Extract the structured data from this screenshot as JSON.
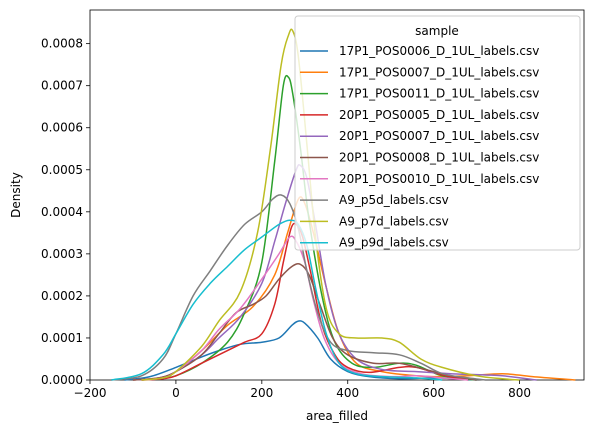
{
  "chart_data": {
    "type": "line",
    "xlabel": "area_filled",
    "ylabel": "Density",
    "xlim": [
      -200,
      950
    ],
    "ylim": [
      0,
      0.00088
    ],
    "xticks": [
      -200,
      0,
      200,
      400,
      600,
      800
    ],
    "xtick_labels": [
      "−200",
      "0",
      "200",
      "400",
      "600",
      "800"
    ],
    "yticks": [
      0,
      0.0001,
      0.0002,
      0.0003,
      0.0004,
      0.0005,
      0.0006,
      0.0007,
      0.0008
    ],
    "ytick_labels": [
      "0.0000",
      "0.0001",
      "0.0002",
      "0.0003",
      "0.0004",
      "0.0005",
      "0.0006",
      "0.0007",
      "0.0008"
    ],
    "grid": false,
    "legend": {
      "title": "sample",
      "placement": "top-right"
    },
    "series": [
      {
        "name": "17P1_POS0006_D_1UL_labels.csv",
        "color": "#1f77b4",
        "points": [
          [
            -120,
            0
          ],
          [
            -60,
            8e-06
          ],
          [
            0,
            3e-05
          ],
          [
            60,
            5.5e-05
          ],
          [
            100,
            7e-05
          ],
          [
            150,
            8.5e-05
          ],
          [
            200,
            9e-05
          ],
          [
            240,
            0.0001
          ],
          [
            270,
            0.00013
          ],
          [
            285,
            0.00014
          ],
          [
            300,
            0.000135
          ],
          [
            330,
            0.0001
          ],
          [
            360,
            5e-05
          ],
          [
            400,
            2e-05
          ],
          [
            450,
            8e-06
          ],
          [
            520,
            3e-06
          ],
          [
            600,
            5e-06
          ],
          [
            650,
            3e-06
          ],
          [
            700,
            0
          ]
        ]
      },
      {
        "name": "17P1_POS0007_D_1UL_labels.csv",
        "color": "#ff7f0e",
        "points": [
          [
            -100,
            0
          ],
          [
            -40,
            5e-06
          ],
          [
            0,
            2e-05
          ],
          [
            60,
            7e-05
          ],
          [
            120,
            0.00013
          ],
          [
            180,
            0.000175
          ],
          [
            230,
            0.00025
          ],
          [
            260,
            0.00035
          ],
          [
            285,
            0.00043
          ],
          [
            300,
            0.00042
          ],
          [
            320,
            0.00035
          ],
          [
            350,
            0.00022
          ],
          [
            380,
            0.00011
          ],
          [
            420,
            4e-05
          ],
          [
            480,
            2e-05
          ],
          [
            540,
            1.2e-05
          ],
          [
            600,
            8e-06
          ],
          [
            680,
            1e-05
          ],
          [
            760,
            1.5e-05
          ],
          [
            830,
            8e-06
          ],
          [
            930,
            0
          ]
        ]
      },
      {
        "name": "17P1_POS0011_D_1UL_labels.csv",
        "color": "#2ca02c",
        "points": [
          [
            -80,
            0
          ],
          [
            -30,
            5e-06
          ],
          [
            0,
            1e-05
          ],
          [
            60,
            4e-05
          ],
          [
            120,
            9e-05
          ],
          [
            160,
            0.00016
          ],
          [
            200,
            0.00028
          ],
          [
            230,
            0.00052
          ],
          [
            250,
            0.0007
          ],
          [
            262,
            0.00072
          ],
          [
            272,
            0.00068
          ],
          [
            290,
            0.00055
          ],
          [
            310,
            0.00038
          ],
          [
            340,
            0.0002
          ],
          [
            370,
            9e-05
          ],
          [
            410,
            4e-05
          ],
          [
            460,
            3e-05
          ],
          [
            520,
            4e-05
          ],
          [
            560,
            3.5e-05
          ],
          [
            620,
            1e-05
          ],
          [
            700,
            0
          ]
        ]
      },
      {
        "name": "20P1_POS0005_D_1UL_labels.csv",
        "color": "#d62728",
        "points": [
          [
            -80,
            0
          ],
          [
            -30,
            3e-06
          ],
          [
            0,
            1e-05
          ],
          [
            60,
            4e-05
          ],
          [
            120,
            7e-05
          ],
          [
            160,
            9e-05
          ],
          [
            200,
            0.00011
          ],
          [
            230,
            0.00018
          ],
          [
            250,
            0.00028
          ],
          [
            268,
            0.00036
          ],
          [
            280,
            0.00037
          ],
          [
            295,
            0.00034
          ],
          [
            315,
            0.00025
          ],
          [
            340,
            0.00013
          ],
          [
            370,
            6e-05
          ],
          [
            400,
            3e-05
          ],
          [
            450,
            1.8e-05
          ],
          [
            520,
            3e-05
          ],
          [
            560,
            3e-05
          ],
          [
            620,
            1.2e-05
          ],
          [
            680,
            0
          ]
        ]
      },
      {
        "name": "20P1_POS0007_D_1UL_labels.csv",
        "color": "#9467bd",
        "points": [
          [
            -100,
            0
          ],
          [
            -40,
            5e-06
          ],
          [
            0,
            2e-05
          ],
          [
            60,
            6e-05
          ],
          [
            100,
            0.0001
          ],
          [
            150,
            0.00015
          ],
          [
            200,
            0.00023
          ],
          [
            230,
            0.00033
          ],
          [
            255,
            0.00042
          ],
          [
            280,
            0.0005
          ],
          [
            290,
            0.00051
          ],
          [
            305,
            0.00048
          ],
          [
            325,
            0.00037
          ],
          [
            350,
            0.00022
          ],
          [
            380,
            0.00011
          ],
          [
            420,
            5e-05
          ],
          [
            480,
            2.5e-05
          ],
          [
            560,
            2e-05
          ],
          [
            640,
            1.5e-05
          ],
          [
            720,
            1.2e-05
          ],
          [
            760,
            1e-05
          ],
          [
            840,
            0
          ]
        ]
      },
      {
        "name": "20P1_POS0008_D_1UL_labels.csv",
        "color": "#8c564b",
        "points": [
          [
            -100,
            0
          ],
          [
            -40,
            5e-06
          ],
          [
            0,
            2e-05
          ],
          [
            60,
            6e-05
          ],
          [
            100,
            0.00011
          ],
          [
            140,
            0.00016
          ],
          [
            180,
            0.00018
          ],
          [
            210,
            0.0002
          ],
          [
            240,
            0.00024
          ],
          [
            270,
            0.00027
          ],
          [
            290,
            0.000275
          ],
          [
            310,
            0.00025
          ],
          [
            335,
            0.00018
          ],
          [
            365,
            0.0001
          ],
          [
            400,
            6e-05
          ],
          [
            460,
            4e-05
          ],
          [
            520,
            4e-05
          ],
          [
            580,
            2.5e-05
          ],
          [
            640,
            1e-05
          ],
          [
            700,
            0
          ]
        ]
      },
      {
        "name": "20P1_POS0010_D_1UL_labels.csv",
        "color": "#e377c2",
        "points": [
          [
            -80,
            0
          ],
          [
            -30,
            5e-06
          ],
          [
            0,
            2e-05
          ],
          [
            60,
            7e-05
          ],
          [
            100,
            0.00012
          ],
          [
            150,
            0.00017
          ],
          [
            200,
            0.00024
          ],
          [
            240,
            0.0003
          ],
          [
            265,
            0.00034
          ],
          [
            280,
            0.00033
          ],
          [
            300,
            0.00028
          ],
          [
            320,
            0.00019
          ],
          [
            345,
            0.0001
          ],
          [
            380,
            4e-05
          ],
          [
            430,
            1.5e-05
          ],
          [
            500,
            8e-06
          ],
          [
            560,
            1e-05
          ],
          [
            620,
            5e-06
          ],
          [
            680,
            0
          ]
        ]
      },
      {
        "name": "A9_p5d_labels.csv",
        "color": "#7f7f7f",
        "points": [
          [
            -150,
            0
          ],
          [
            -80,
            1e-05
          ],
          [
            -30,
            5e-05
          ],
          [
            0,
            0.00011
          ],
          [
            40,
            0.0002
          ],
          [
            80,
            0.00026
          ],
          [
            120,
            0.00032
          ],
          [
            160,
            0.00037
          ],
          [
            200,
            0.0004
          ],
          [
            225,
            0.00043
          ],
          [
            245,
            0.00044
          ],
          [
            265,
            0.00042
          ],
          [
            285,
            0.00036
          ],
          [
            305,
            0.00026
          ],
          [
            330,
            0.00016
          ],
          [
            360,
            9e-05
          ],
          [
            400,
            7e-05
          ],
          [
            460,
            6.5e-05
          ],
          [
            520,
            6e-05
          ],
          [
            570,
            4e-05
          ],
          [
            620,
            1.5e-05
          ],
          [
            680,
            5e-06
          ],
          [
            720,
            0
          ]
        ]
      },
      {
        "name": "A9_p7d_labels.csv",
        "color": "#bcbd22",
        "points": [
          [
            -80,
            0
          ],
          [
            -30,
            5e-06
          ],
          [
            0,
            2e-05
          ],
          [
            60,
            8e-05
          ],
          [
            100,
            0.00014
          ],
          [
            150,
            0.00021
          ],
          [
            190,
            0.00035
          ],
          [
            220,
            0.00055
          ],
          [
            245,
            0.00075
          ],
          [
            262,
            0.00082
          ],
          [
            272,
            0.00083
          ],
          [
            285,
            0.00077
          ],
          [
            305,
            0.00056
          ],
          [
            325,
            0.00034
          ],
          [
            350,
            0.00017
          ],
          [
            380,
            0.00011
          ],
          [
            420,
            0.0001
          ],
          [
            480,
            0.0001
          ],
          [
            520,
            9e-05
          ],
          [
            570,
            5e-05
          ],
          [
            620,
            3e-05
          ],
          [
            700,
            1e-05
          ],
          [
            760,
            3e-06
          ],
          [
            800,
            0
          ]
        ]
      },
      {
        "name": "A9_p9d_labels.csv",
        "color": "#17becf",
        "points": [
          [
            -150,
            0
          ],
          [
            -80,
            1.5e-05
          ],
          [
            -30,
            6e-05
          ],
          [
            0,
            0.00011
          ],
          [
            40,
            0.00018
          ],
          [
            80,
            0.00023
          ],
          [
            120,
            0.00027
          ],
          [
            160,
            0.00031
          ],
          [
            200,
            0.00034
          ],
          [
            240,
            0.00037
          ],
          [
            265,
            0.00038
          ],
          [
            285,
            0.00037
          ],
          [
            305,
            0.00032
          ],
          [
            325,
            0.00022
          ],
          [
            350,
            0.00011
          ],
          [
            380,
            4e-05
          ],
          [
            420,
            1.5e-05
          ],
          [
            480,
            8e-06
          ],
          [
            560,
            5e-06
          ],
          [
            620,
            0
          ]
        ]
      }
    ]
  }
}
